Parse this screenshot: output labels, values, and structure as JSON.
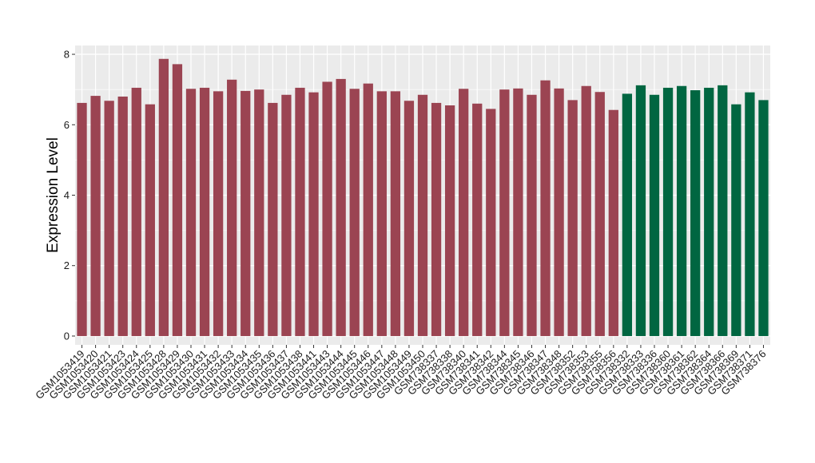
{
  "chart_data": {
    "type": "bar",
    "ylabel": "Expression Level",
    "xlabel": "",
    "ylim": [
      -0.25,
      8.25
    ],
    "yticks": [
      0,
      2,
      4,
      6,
      8
    ],
    "grid": true,
    "legend": "none",
    "colors": {
      "group1": "#9b4452",
      "group2": "#006641",
      "panel": "#ebebeb",
      "grid": "#ffffff"
    },
    "categories": [
      "GSM1053419",
      "GSM1053420",
      "GSM1053421",
      "GSM1053423",
      "GSM1053424",
      "GSM1053425",
      "GSM1053428",
      "GSM1053429",
      "GSM1053430",
      "GSM1053431",
      "GSM1053432",
      "GSM1053433",
      "GSM1053434",
      "GSM1053435",
      "GSM1053436",
      "GSM1053437",
      "GSM1053438",
      "GSM1053441",
      "GSM1053443",
      "GSM1053444",
      "GSM1053445",
      "GSM1053446",
      "GSM1053447",
      "GSM1053448",
      "GSM1053449",
      "GSM1053450",
      "GSM738337",
      "GSM738338",
      "GSM738340",
      "GSM738341",
      "GSM738342",
      "GSM738344",
      "GSM738345",
      "GSM738346",
      "GSM738347",
      "GSM738348",
      "GSM738352",
      "GSM738353",
      "GSM738355",
      "GSM738356",
      "GSM738332",
      "GSM738333",
      "GSM738336",
      "GSM738360",
      "GSM738361",
      "GSM738362",
      "GSM738364",
      "GSM738366",
      "GSM738369",
      "GSM738371",
      "GSM738376"
    ],
    "values": [
      6.62,
      6.82,
      6.68,
      6.8,
      7.05,
      6.58,
      7.87,
      7.72,
      7.02,
      7.05,
      6.95,
      7.28,
      6.96,
      7.0,
      6.62,
      6.85,
      7.05,
      6.92,
      7.22,
      7.3,
      7.02,
      7.17,
      6.95,
      6.95,
      6.68,
      6.85,
      6.62,
      6.55,
      7.02,
      6.6,
      6.45,
      7.0,
      7.03,
      6.85,
      7.26,
      7.03,
      6.7,
      7.1,
      6.93,
      6.42,
      6.88,
      7.12,
      6.85,
      7.05,
      7.1,
      6.98,
      7.05,
      7.12,
      6.58,
      6.92,
      6.7
    ],
    "groups": [
      1,
      1,
      1,
      1,
      1,
      1,
      1,
      1,
      1,
      1,
      1,
      1,
      1,
      1,
      1,
      1,
      1,
      1,
      1,
      1,
      1,
      1,
      1,
      1,
      1,
      1,
      1,
      1,
      1,
      1,
      1,
      1,
      1,
      1,
      1,
      1,
      1,
      1,
      1,
      1,
      2,
      2,
      2,
      2,
      2,
      2,
      2,
      2,
      2,
      2,
      2
    ]
  }
}
